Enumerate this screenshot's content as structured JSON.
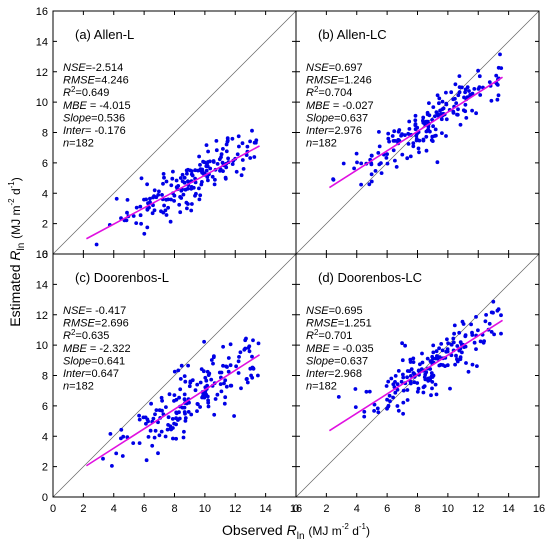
{
  "figure": {
    "xlabel_pre": "Observed ",
    "xlabel_var": "R",
    "xlabel_sub": "ln",
    "xlabel_unit": "(MJ m",
    "xlabel_exp1": "-2",
    "xlabel_unit2": " d",
    "xlabel_exp2": "-1",
    "xlabel_close": ")",
    "ylabel_pre": "Estimated ",
    "ylabel_var": "R",
    "ylabel_sub": "ln",
    "ylabel_unit": "(MJ m",
    "ylabel_exp1": "-2",
    "ylabel_unit2": " d",
    "ylabel_exp2": "-1",
    "ylabel_close": ")",
    "point_color": "#0000e6",
    "fit_color": "#e010e0",
    "one_to_one_color": "#666666"
  },
  "chart_data": [
    {
      "type": "scatter",
      "title": "(a) Allen-L",
      "xlim": [
        0,
        16
      ],
      "ylim": [
        0,
        16
      ],
      "xticks": [
        "0",
        "2",
        "4",
        "6",
        "8",
        "10",
        "12",
        "14",
        "16"
      ],
      "yticks": [
        "0",
        "2",
        "4",
        "6",
        "8",
        "10",
        "12",
        "14",
        "16"
      ],
      "stats": [
        {
          "label": "NSE",
          "value": "=-2.514"
        },
        {
          "label": "RMSE",
          "value": "=4.246"
        },
        {
          "label": "R",
          "sup": "2",
          "value": "=0.649"
        },
        {
          "label": "MBE",
          "value": " = -4.015"
        },
        {
          "label": "Slope",
          "value": "=0.536"
        },
        {
          "label": "Inter",
          "value": "= -0.176"
        },
        {
          "label": "n",
          "value": "=182"
        }
      ],
      "fit": {
        "slope": 0.536,
        "intercept": -0.176,
        "x_range": [
          2.2,
          13.6
        ]
      },
      "points": {
        "n": 182,
        "slope": 0.536,
        "intercept": -0.176,
        "rmse": 0.75,
        "x_min": 2.2,
        "x_max": 13.6
      }
    },
    {
      "type": "scatter",
      "title": "(b) Allen-LC",
      "xlim": [
        0,
        16
      ],
      "ylim": [
        0,
        16
      ],
      "xticks": [
        "0",
        "2",
        "4",
        "6",
        "8",
        "10",
        "12",
        "14",
        "16"
      ],
      "yticks": [
        "0",
        "2",
        "4",
        "6",
        "8",
        "10",
        "12",
        "14",
        "16"
      ],
      "stats": [
        {
          "label": "NSE",
          "value": "=0.697"
        },
        {
          "label": "RMSE",
          "value": "=1.246"
        },
        {
          "label": "R",
          "sup": "2",
          "value": "=0.704"
        },
        {
          "label": "MBE",
          "value": " = -0.027"
        },
        {
          "label": "Slope",
          "value": "=0.637"
        },
        {
          "label": "Inter",
          "value": "=2.976"
        },
        {
          "label": "n",
          "value": "=182"
        }
      ],
      "fit": {
        "slope": 0.637,
        "intercept": 2.976,
        "x_range": [
          2.2,
          13.6
        ]
      },
      "points": {
        "n": 182,
        "slope": 0.637,
        "intercept": 2.976,
        "rmse": 0.85,
        "x_min": 2.2,
        "x_max": 13.6
      }
    },
    {
      "type": "scatter",
      "title": "(c) Doorenbos-L",
      "xlim": [
        0,
        16
      ],
      "ylim": [
        0,
        16
      ],
      "xticks": [
        "0",
        "2",
        "4",
        "6",
        "8",
        "10",
        "12",
        "14",
        "16"
      ],
      "yticks": [
        "0",
        "2",
        "4",
        "6",
        "8",
        "10",
        "12",
        "14",
        "16"
      ],
      "stats": [
        {
          "label": "NSE",
          "value": "= -0.417"
        },
        {
          "label": "RMSE",
          "value": "=2.696"
        },
        {
          "label": "R",
          "sup": "2",
          "value": "=0.635"
        },
        {
          "label": "MBE",
          "value": " = -2.322"
        },
        {
          "label": "Slope",
          "value": "=0.641"
        },
        {
          "label": "Inter",
          "value": "=0.647"
        },
        {
          "label": "n",
          "value": "=182"
        }
      ],
      "fit": {
        "slope": 0.641,
        "intercept": 0.647,
        "x_range": [
          2.2,
          13.6
        ]
      },
      "points": {
        "n": 182,
        "slope": 0.641,
        "intercept": 0.647,
        "rmse": 1.0,
        "x_min": 2.2,
        "x_max": 13.6
      }
    },
    {
      "type": "scatter",
      "title": "(d) Doorenbos-LC",
      "xlim": [
        0,
        16
      ],
      "ylim": [
        0,
        16
      ],
      "xticks": [
        "0",
        "2",
        "4",
        "6",
        "8",
        "10",
        "12",
        "14",
        "16"
      ],
      "yticks": [
        "0",
        "2",
        "4",
        "6",
        "8",
        "10",
        "12",
        "14",
        "16"
      ],
      "stats": [
        {
          "label": "NSE",
          "value": "=0.695"
        },
        {
          "label": "RMSE",
          "value": "=1.251"
        },
        {
          "label": "R",
          "sup": "2",
          "value": "=0.701"
        },
        {
          "label": "MBE",
          "value": " = -0.035"
        },
        {
          "label": "Slope",
          "value": "=0.637"
        },
        {
          "label": "Inter",
          "value": "=2.968"
        },
        {
          "label": "n",
          "value": "=182"
        }
      ],
      "fit": {
        "slope": 0.637,
        "intercept": 2.968,
        "x_range": [
          2.2,
          13.6
        ]
      },
      "points": {
        "n": 182,
        "slope": 0.637,
        "intercept": 2.968,
        "rmse": 0.85,
        "x_min": 2.2,
        "x_max": 13.6
      }
    }
  ]
}
